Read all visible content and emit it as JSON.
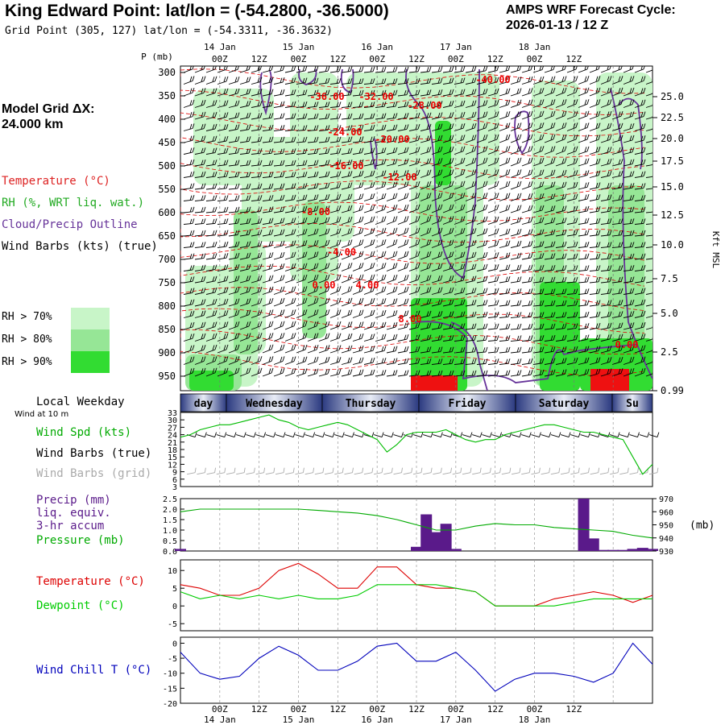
{
  "header": {
    "station_title": "King Edward Point:  lat/lon = (-54.2800, -36.5000)",
    "grid_point": "Grid Point (305, 127) lat/lon = (-54.3311, -36.3632)",
    "cycle_line1": "AMPS WRF Forecast Cycle:",
    "cycle_line2": "2026-01-13 / 12  Z"
  },
  "model_grid": {
    "line1": "Model Grid ΔX:",
    "line2": " 24.000 km"
  },
  "legend": {
    "temperature": "Temperature (°C)",
    "rh": "RH (%, WRT liq. wat.)",
    "cloud": "Cloud/Precip Outline",
    "wind": "Wind Barbs (kts) (true)",
    "rh70": "RH > 70%",
    "rh80": "RH > 80%",
    "rh90": "RH > 90%"
  },
  "colors": {
    "rh70": "#c8f5c8",
    "rh80": "#96e696",
    "rh90": "#32dc32",
    "temperature": "#dd0000",
    "cloud": "#663399",
    "wind": "#000000",
    "wind_grid": "#aaaaaa",
    "windspd": "#00bb00",
    "precip": "#5a1a8a",
    "pressure": "#00aa00",
    "temp2m": "#dd0000",
    "dewpoint": "#00cc00",
    "windchill": "#0000bb",
    "weekday_bar": "#2b3a80",
    "weekday_light": "#e8ecf6"
  },
  "time_axis": {
    "top_labels": [
      "00Z",
      "12Z",
      "00Z",
      "12Z",
      "00Z",
      "12Z",
      "00Z",
      "12Z",
      "00Z",
      "12Z"
    ],
    "date_labels": [
      "14 Jan",
      "15 Jan",
      "16 Jan",
      "17 Jan",
      "18 Jan"
    ]
  },
  "upper_panel": {
    "p_label": "P (mb)",
    "pressure_ticks": [
      "300",
      "350",
      "400",
      "450",
      "500",
      "550",
      "600",
      "650",
      "700",
      "750",
      "800",
      "850",
      "900",
      "950"
    ],
    "height_ticks": [
      "25.0",
      "22.5",
      "20.0",
      "17.5",
      "15.0",
      "12.5",
      "10.0",
      "7.5",
      "5.0",
      "2.5",
      "0.99"
    ],
    "height_unit": "Kft MSL",
    "temp_contour_labels": [
      "-40.00",
      "-36.00",
      "-32.00",
      "-28.00",
      "-24.00",
      "-20.00",
      "-16.00",
      "-12.00",
      "-8.00",
      "-4.00",
      "0.00",
      "4.00",
      "8.00",
      "0.00"
    ]
  },
  "weekday": {
    "label": "Local Weekday",
    "days": [
      "day",
      "Wednesday",
      "Thursday",
      "Friday",
      "Saturday",
      "Su"
    ]
  },
  "panels": {
    "wind": {
      "note": "Wind at 10 m",
      "labels": [
        "Wind Spd (kts)",
        "Wind Barbs (true)",
        "Wind Barbs (grid)"
      ],
      "yticks": [
        "33",
        "30",
        "27",
        "24",
        "21",
        "18",
        "15",
        "12",
        "9",
        "6",
        "3"
      ]
    },
    "precip": {
      "labels": [
        "Precip (mm)",
        "liq. equiv.",
        "3-hr accum",
        "Pressure (mb)"
      ],
      "yticks": [
        "2.5",
        "2.0",
        "1.5",
        "1.0",
        "0.5",
        "0.0"
      ],
      "yticks_right": [
        "970",
        "960",
        "950",
        "940",
        "930"
      ],
      "right_unit": "(mb)"
    },
    "temp": {
      "labels": [
        "Temperature (°C)",
        "Dewpoint (°C)"
      ],
      "yticks": [
        "10",
        "5",
        "0",
        "-5"
      ]
    },
    "chill": {
      "labels": [
        "Wind Chill T (°C)"
      ],
      "yticks": [
        "0",
        "-5",
        "-10",
        "-15",
        "-20"
      ]
    }
  },
  "chart_data": [
    {
      "type": "line",
      "title": "Wind Spd (kts)",
      "x": [
        0,
        3,
        6,
        9,
        12,
        15,
        18,
        21,
        24,
        27,
        30,
        33,
        36,
        39,
        42,
        45,
        48,
        51,
        54,
        57,
        60,
        63,
        66,
        69,
        72,
        75,
        78,
        81,
        84,
        87,
        90,
        93,
        96,
        99,
        102,
        105,
        108,
        111,
        114,
        117,
        120,
        123,
        126,
        129,
        132,
        135,
        138,
        141,
        144
      ],
      "series": [
        {
          "name": "Wind Spd (kts)",
          "values": [
            23,
            24,
            26,
            27,
            28,
            28,
            29,
            30,
            31,
            32,
            30,
            29,
            27,
            26,
            27,
            28,
            29,
            28,
            26,
            24,
            22,
            17,
            20,
            24,
            25,
            25,
            25,
            26,
            24,
            22,
            21,
            22,
            22,
            24,
            25,
            26,
            27,
            28,
            28,
            27,
            26,
            25,
            25,
            24,
            23,
            22,
            15,
            8,
            12
          ]
        }
      ],
      "ylim": [
        3,
        33
      ]
    },
    {
      "type": "bar",
      "title": "Precip (mm) 3-hr accum",
      "x": [
        0,
        3,
        6,
        9,
        12,
        15,
        18,
        21,
        24,
        27,
        30,
        33,
        36,
        39,
        42,
        45,
        48,
        51,
        54,
        57,
        60,
        63,
        66,
        69,
        72,
        75,
        78,
        81,
        84,
        87,
        90,
        93,
        96,
        99,
        102,
        105,
        108,
        111,
        114,
        117,
        120,
        123,
        126,
        129,
        132,
        135,
        138,
        141,
        144
      ],
      "series": [
        {
          "name": "Precip (mm)",
          "values": [
            0.1,
            0,
            0,
            0,
            0,
            0,
            0,
            0,
            0,
            0,
            0,
            0,
            0,
            0,
            0,
            0,
            0,
            0,
            0,
            0,
            0,
            0,
            0,
            0,
            0.2,
            1.75,
            0.9,
            1.3,
            0.1,
            0,
            0,
            0,
            0,
            0,
            0,
            0,
            0,
            0,
            0,
            0,
            0,
            2.5,
            0.6,
            0.05,
            0.05,
            0.05,
            0.1,
            0.15,
            0.1
          ]
        }
      ],
      "ylim": [
        0,
        2.5
      ]
    },
    {
      "type": "line",
      "title": "Pressure (mb)",
      "x": [
        0,
        6,
        12,
        18,
        24,
        30,
        36,
        42,
        48,
        54,
        60,
        66,
        72,
        78,
        84,
        90,
        96,
        102,
        108,
        114,
        120,
        126,
        132,
        138,
        144
      ],
      "series": [
        {
          "name": "Pressure (mb)",
          "values": [
            960,
            962,
            962,
            962,
            962,
            962,
            962,
            961,
            960,
            959,
            957,
            954,
            950,
            946,
            946,
            949,
            951,
            950,
            950,
            948,
            947,
            946,
            945,
            942,
            940
          ]
        }
      ],
      "ylim": [
        930,
        970
      ]
    },
    {
      "type": "line",
      "title": "Temperature (°C) / Dewpoint (°C)",
      "x": [
        0,
        6,
        12,
        18,
        24,
        30,
        36,
        42,
        48,
        54,
        60,
        66,
        72,
        78,
        84,
        90,
        96,
        102,
        108,
        114,
        120,
        126,
        132,
        138,
        144
      ],
      "series": [
        {
          "name": "Temperature (°C)",
          "values": [
            6,
            5,
            3,
            3,
            5,
            10,
            12,
            9,
            5,
            5,
            11,
            11,
            6,
            5,
            5,
            4,
            0,
            0,
            0,
            2,
            3,
            4,
            3,
            1,
            3
          ]
        },
        {
          "name": "Dewpoint (°C)",
          "values": [
            4,
            2,
            3,
            2,
            3,
            2,
            3,
            2,
            2,
            3,
            6,
            6,
            6,
            6,
            5,
            4,
            0,
            0,
            0,
            0,
            1,
            2,
            2,
            2,
            2
          ]
        }
      ],
      "ylim": [
        -7,
        13
      ]
    },
    {
      "type": "line",
      "title": "Wind Chill T (°C)",
      "x": [
        0,
        6,
        12,
        18,
        24,
        30,
        36,
        42,
        48,
        54,
        60,
        66,
        72,
        78,
        84,
        90,
        96,
        102,
        108,
        114,
        120,
        126,
        132,
        138,
        144
      ],
      "series": [
        {
          "name": "Wind Chill T (°C)",
          "values": [
            -3,
            -10,
            -12,
            -11,
            -5,
            -1,
            -4,
            -9,
            -9,
            -6,
            -1,
            0,
            -6,
            -6,
            -3,
            -9,
            -16,
            -12,
            -10,
            -10,
            -11,
            -13,
            -10,
            0,
            -7
          ]
        }
      ],
      "ylim": [
        -20,
        2
      ]
    }
  ]
}
